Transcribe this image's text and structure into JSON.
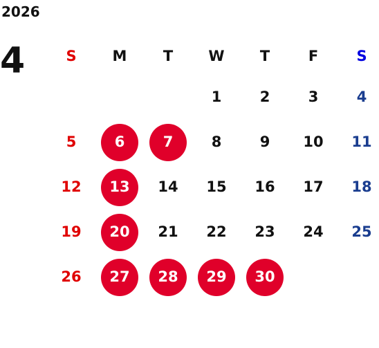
{
  "year": "2026",
  "month": "4",
  "colors": {
    "sunday": "#e00000",
    "saturday": "#1a3d8f",
    "saturday_header": "#0000e0",
    "highlight": "#e0002a",
    "weekday": "#111111"
  },
  "weekdays": [
    "S",
    "M",
    "T",
    "W",
    "T",
    "F",
    "S"
  ],
  "weeks": [
    [
      "",
      "",
      "",
      "1",
      "2",
      "3",
      "4"
    ],
    [
      "5",
      "6",
      "7",
      "8",
      "9",
      "10",
      "11"
    ],
    [
      "12",
      "13",
      "14",
      "15",
      "16",
      "17",
      "18"
    ],
    [
      "19",
      "20",
      "21",
      "22",
      "23",
      "24",
      "25"
    ],
    [
      "26",
      "27",
      "28",
      "29",
      "30",
      "",
      ""
    ]
  ],
  "highlighted_days": [
    "6",
    "7",
    "13",
    "20",
    "27",
    "28",
    "29",
    "30"
  ]
}
